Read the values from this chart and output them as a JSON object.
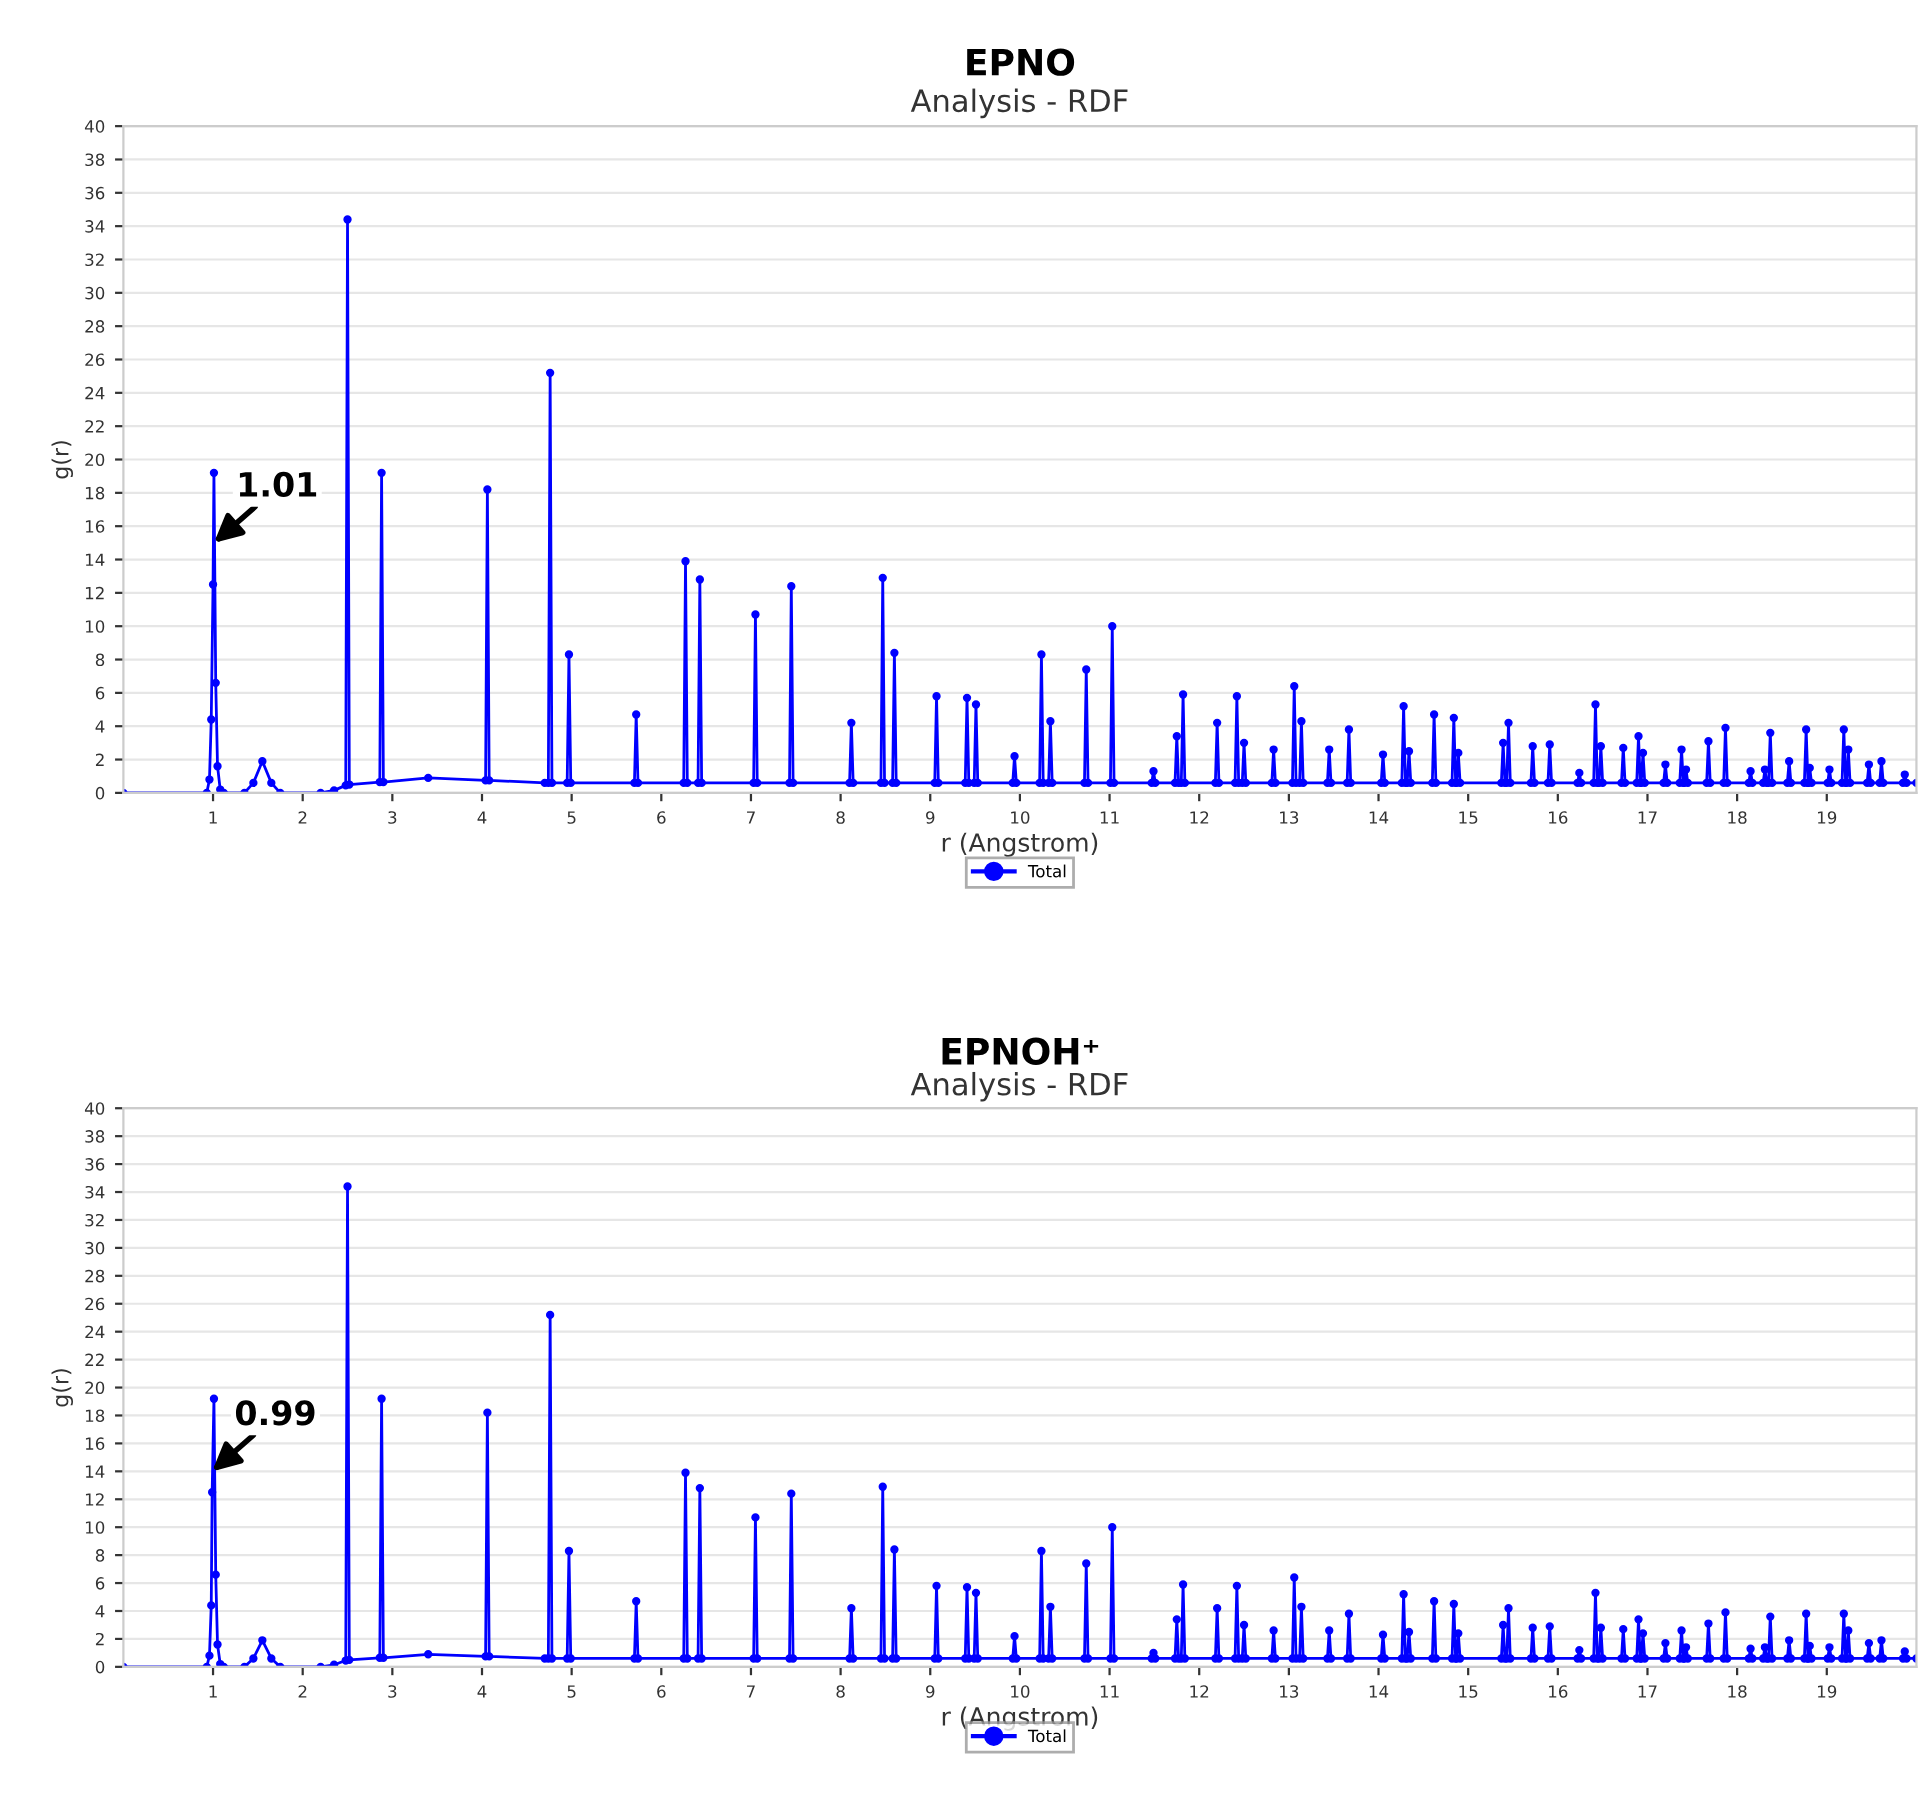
{
  "chart_data": [
    {
      "type": "line",
      "title": "EPNO",
      "subtitle": "Analysis - RDF",
      "xlabel": "r (Angstrom)",
      "ylabel": "g(r)",
      "xlim": [
        0,
        20
      ],
      "ylim": [
        0,
        40
      ],
      "xticks": [
        1,
        2,
        3,
        4,
        5,
        6,
        7,
        8,
        9,
        10,
        11,
        12,
        13,
        14,
        15,
        16,
        17,
        18,
        19
      ],
      "yticks": [
        0,
        2,
        4,
        6,
        8,
        10,
        12,
        14,
        16,
        18,
        20,
        22,
        24,
        26,
        28,
        30,
        32,
        34,
        36,
        38,
        40
      ],
      "grid": "y",
      "legend": "bottom",
      "marker": "circle",
      "line_style": "solid",
      "annotations": [
        {
          "text": "1.01",
          "x": 1.01,
          "y": 15
        }
      ],
      "series": [
        {
          "name": "Total",
          "color": "#0000ff",
          "x": [
            0,
            0.93,
            0.96,
            0.98,
            1.0,
            1.01,
            1.03,
            1.05,
            1.08,
            1.12,
            1.35,
            1.45,
            1.55,
            1.65,
            1.75,
            2.2,
            2.35,
            2.48,
            2.5,
            2.52,
            2.86,
            2.88,
            2.9,
            3.4,
            4.04,
            4.06,
            4.08,
            4.7,
            4.74,
            4.76,
            4.78,
            4.95,
            4.97,
            4.99,
            5.7,
            5.72,
            5.74,
            6.25,
            6.27,
            6.29,
            6.41,
            6.43,
            6.45,
            7.03,
            7.05,
            7.07,
            7.43,
            7.45,
            7.47,
            8.1,
            8.12,
            8.14,
            8.45,
            8.47,
            8.49,
            8.58,
            8.6,
            8.62,
            9.05,
            9.07,
            9.09,
            9.39,
            9.41,
            9.43,
            9.49,
            9.51,
            9.53,
            9.92,
            9.94,
            9.96,
            10.22,
            10.24,
            10.26,
            10.32,
            10.34,
            10.36,
            10.72,
            10.74,
            10.76,
            11.01,
            11.03,
            11.05,
            11.47,
            11.49,
            11.51,
            11.73,
            11.75,
            11.77,
            11.8,
            11.82,
            11.84,
            12.18,
            12.2,
            12.22,
            12.4,
            12.42,
            12.44,
            12.48,
            12.5,
            12.52,
            12.81,
            12.83,
            12.85,
            13.04,
            13.06,
            13.08,
            13.12,
            13.14,
            13.16,
            13.43,
            13.45,
            13.47,
            13.65,
            13.67,
            13.69,
            14.03,
            14.05,
            14.07,
            14.26,
            14.28,
            14.3,
            14.32,
            14.34,
            14.36,
            14.6,
            14.62,
            14.64,
            14.82,
            14.84,
            14.86,
            14.87,
            14.89,
            14.91,
            15.37,
            15.39,
            15.41,
            15.43,
            15.45,
            15.47,
            15.7,
            15.72,
            15.74,
            15.89,
            15.91,
            15.93,
            16.22,
            16.24,
            16.26,
            16.4,
            16.42,
            16.44,
            16.46,
            16.48,
            16.5,
            16.71,
            16.73,
            16.75,
            16.88,
            16.9,
            16.92,
            16.93,
            16.95,
            16.97,
            17.18,
            17.2,
            17.22,
            17.36,
            17.38,
            17.4,
            17.41,
            17.43,
            17.45,
            17.66,
            17.68,
            17.7,
            17.85,
            17.87,
            17.89,
            18.13,
            18.15,
            18.17,
            18.29,
            18.31,
            18.33,
            18.35,
            18.37,
            18.39,
            18.56,
            18.58,
            18.6,
            18.75,
            18.77,
            18.79,
            18.79,
            18.81,
            18.83,
            19.01,
            19.03,
            19.05,
            19.17,
            19.19,
            19.21,
            19.22,
            19.24,
            19.26,
            19.45,
            19.47,
            19.49,
            19.59,
            19.61,
            19.63,
            19.85,
            19.87,
            19.89,
            20
          ],
          "values": [
            0,
            0,
            0.8,
            4.4,
            12.5,
            19.2,
            6.6,
            1.6,
            0.2,
            0,
            0,
            0.6,
            1.9,
            0.6,
            0,
            0,
            0.15,
            0.45,
            34.4,
            0.5,
            0.65,
            19.2,
            0.65,
            0.9,
            0.75,
            18.2,
            0.75,
            0.6,
            0.6,
            25.2,
            0.6,
            0.6,
            8.3,
            0.6,
            0.6,
            4.7,
            0.6,
            0.6,
            13.9,
            0.6,
            0.6,
            12.8,
            0.6,
            0.6,
            10.7,
            0.6,
            0.6,
            12.4,
            0.6,
            0.6,
            4.2,
            0.6,
            0.6,
            12.9,
            0.6,
            0.6,
            8.4,
            0.6,
            0.6,
            5.8,
            0.6,
            0.6,
            5.7,
            0.6,
            0.6,
            5.3,
            0.6,
            0.6,
            2.2,
            0.6,
            0.6,
            8.3,
            0.6,
            0.6,
            4.3,
            0.6,
            0.6,
            7.4,
            0.6,
            0.6,
            10,
            0.6,
            0.6,
            1.3,
            0.6,
            0.6,
            3.4,
            0.6,
            0.6,
            5.9,
            0.6,
            0.6,
            4.2,
            0.6,
            0.6,
            5.8,
            0.6,
            0.6,
            3.0,
            0.6,
            0.6,
            2.6,
            0.6,
            0.6,
            6.4,
            0.6,
            0.6,
            4.3,
            0.6,
            0.6,
            2.6,
            0.6,
            0.6,
            3.8,
            0.6,
            0.6,
            2.3,
            0.6,
            0.6,
            5.2,
            0.6,
            0.6,
            2.5,
            0.6,
            0.6,
            4.7,
            0.6,
            0.6,
            4.5,
            0.6,
            0.6,
            2.4,
            0.6,
            0.6,
            3.0,
            0.6,
            0.6,
            4.2,
            0.6,
            0.6,
            2.8,
            0.6,
            0.6,
            2.9,
            0.6,
            0.6,
            1.2,
            0.6,
            0.6,
            5.3,
            0.6,
            0.6,
            2.8,
            0.6,
            0.6,
            2.7,
            0.6,
            0.6,
            3.4,
            0.6,
            0.6,
            2.4,
            0.6,
            0.6,
            1.7,
            0.6,
            0.6,
            2.6,
            0.6,
            0.6,
            1.4,
            0.6,
            0.6,
            3.1,
            0.6,
            0.6,
            3.9,
            0.6,
            0.6,
            1.3,
            0.6,
            0.6,
            1.4,
            0.6,
            0.6,
            3.6,
            0.6,
            0.6,
            1.9,
            0.6,
            0.6,
            3.8,
            0.6,
            0.6,
            1.5,
            0.6,
            0.6,
            1.4,
            0.6,
            0.6,
            3.8,
            0.6,
            0.6,
            2.6,
            0.6,
            0.6,
            1.7,
            0.6,
            0.6,
            1.9,
            0.6,
            0.6,
            1.1,
            0.6,
            0.6
          ]
        }
      ]
    },
    {
      "type": "line",
      "title": "EPNOH⁺",
      "subtitle": "Analysis - RDF",
      "xlabel": "r (Angstrom)",
      "ylabel": "g(r)",
      "xlim": [
        0,
        20
      ],
      "ylim": [
        0,
        40
      ],
      "xticks": [
        1,
        2,
        3,
        4,
        5,
        6,
        7,
        8,
        9,
        10,
        11,
        12,
        13,
        14,
        15,
        16,
        17,
        18,
        19
      ],
      "yticks": [
        0,
        2,
        4,
        6,
        8,
        10,
        12,
        14,
        16,
        18,
        20,
        22,
        24,
        26,
        28,
        30,
        32,
        34,
        36,
        38,
        40
      ],
      "grid": "y",
      "legend": "bottom",
      "marker": "circle",
      "line_style": "solid",
      "annotations": [
        {
          "text": "0.99",
          "x": 0.99,
          "y": 14
        }
      ],
      "series": [
        {
          "name": "Total",
          "color": "#0000ff",
          "x": [
            0,
            0.93,
            0.96,
            0.98,
            0.99,
            1.01,
            1.03,
            1.05,
            1.08,
            1.12,
            1.35,
            1.45,
            1.55,
            1.65,
            1.75,
            2.2,
            2.35,
            2.48,
            2.5,
            2.52,
            2.86,
            2.88,
            2.9,
            3.4,
            4.04,
            4.06,
            4.08,
            4.7,
            4.74,
            4.76,
            4.78,
            4.95,
            4.97,
            4.99,
            5.7,
            5.72,
            5.74,
            6.25,
            6.27,
            6.29,
            6.41,
            6.43,
            6.45,
            7.03,
            7.05,
            7.07,
            7.43,
            7.45,
            7.47,
            8.1,
            8.12,
            8.14,
            8.45,
            8.47,
            8.49,
            8.58,
            8.6,
            8.62,
            9.05,
            9.07,
            9.09,
            9.39,
            9.41,
            9.43,
            9.49,
            9.51,
            9.53,
            9.92,
            9.94,
            9.96,
            10.22,
            10.24,
            10.26,
            10.32,
            10.34,
            10.36,
            10.72,
            10.74,
            10.76,
            11.01,
            11.03,
            11.05,
            11.47,
            11.49,
            11.51,
            11.73,
            11.75,
            11.77,
            11.8,
            11.82,
            11.84,
            12.18,
            12.2,
            12.22,
            12.4,
            12.42,
            12.44,
            12.48,
            12.5,
            12.52,
            12.81,
            12.83,
            12.85,
            13.04,
            13.06,
            13.08,
            13.12,
            13.14,
            13.16,
            13.43,
            13.45,
            13.47,
            13.65,
            13.67,
            13.69,
            14.03,
            14.05,
            14.07,
            14.26,
            14.28,
            14.3,
            14.32,
            14.34,
            14.36,
            14.6,
            14.62,
            14.64,
            14.82,
            14.84,
            14.86,
            14.87,
            14.89,
            14.91,
            15.37,
            15.39,
            15.41,
            15.43,
            15.45,
            15.47,
            15.7,
            15.72,
            15.74,
            15.89,
            15.91,
            15.93,
            16.22,
            16.24,
            16.26,
            16.4,
            16.42,
            16.44,
            16.46,
            16.48,
            16.5,
            16.71,
            16.73,
            16.75,
            16.88,
            16.9,
            16.92,
            16.93,
            16.95,
            16.97,
            17.18,
            17.2,
            17.22,
            17.36,
            17.38,
            17.4,
            17.41,
            17.43,
            17.45,
            17.66,
            17.68,
            17.7,
            17.85,
            17.87,
            17.89,
            18.13,
            18.15,
            18.17,
            18.29,
            18.31,
            18.33,
            18.35,
            18.37,
            18.39,
            18.56,
            18.58,
            18.6,
            18.75,
            18.77,
            18.79,
            18.79,
            18.81,
            18.83,
            19.01,
            19.03,
            19.05,
            19.17,
            19.19,
            19.21,
            19.22,
            19.24,
            19.26,
            19.45,
            19.47,
            19.49,
            19.59,
            19.61,
            19.63,
            19.85,
            19.87,
            19.89,
            20
          ],
          "values": [
            0,
            0,
            0.8,
            4.4,
            12.5,
            19.2,
            6.6,
            1.6,
            0.2,
            0,
            0,
            0.6,
            1.9,
            0.6,
            0,
            0,
            0.15,
            0.45,
            34.4,
            0.5,
            0.65,
            19.2,
            0.65,
            0.9,
            0.75,
            18.2,
            0.75,
            0.6,
            0.6,
            25.2,
            0.6,
            0.6,
            8.3,
            0.6,
            0.6,
            4.7,
            0.6,
            0.6,
            13.9,
            0.6,
            0.6,
            12.8,
            0.6,
            0.6,
            10.7,
            0.6,
            0.6,
            12.4,
            0.6,
            0.6,
            4.2,
            0.6,
            0.6,
            12.9,
            0.6,
            0.6,
            8.4,
            0.6,
            0.6,
            5.8,
            0.6,
            0.6,
            5.7,
            0.6,
            0.6,
            5.3,
            0.6,
            0.6,
            2.2,
            0.6,
            0.6,
            8.3,
            0.6,
            0.6,
            4.3,
            0.6,
            0.6,
            7.4,
            0.6,
            0.6,
            10,
            0.6,
            0.6,
            1.0,
            0.6,
            0.6,
            3.4,
            0.6,
            0.6,
            5.9,
            0.6,
            0.6,
            4.2,
            0.6,
            0.6,
            5.8,
            0.6,
            0.6,
            3.0,
            0.6,
            0.6,
            2.6,
            0.6,
            0.6,
            6.4,
            0.6,
            0.6,
            4.3,
            0.6,
            0.6,
            2.6,
            0.6,
            0.6,
            3.8,
            0.6,
            0.6,
            2.3,
            0.6,
            0.6,
            5.2,
            0.6,
            0.6,
            2.5,
            0.6,
            0.6,
            4.7,
            0.6,
            0.6,
            4.5,
            0.6,
            0.6,
            2.4,
            0.6,
            0.6,
            3.0,
            0.6,
            0.6,
            4.2,
            0.6,
            0.6,
            2.8,
            0.6,
            0.6,
            2.9,
            0.6,
            0.6,
            1.2,
            0.6,
            0.6,
            5.3,
            0.6,
            0.6,
            2.8,
            0.6,
            0.6,
            2.7,
            0.6,
            0.6,
            3.4,
            0.6,
            0.6,
            2.4,
            0.6,
            0.6,
            1.7,
            0.6,
            0.6,
            2.6,
            0.6,
            0.6,
            1.4,
            0.6,
            0.6,
            3.1,
            0.6,
            0.6,
            3.9,
            0.6,
            0.6,
            1.3,
            0.6,
            0.6,
            1.4,
            0.6,
            0.6,
            3.6,
            0.6,
            0.6,
            1.9,
            0.6,
            0.6,
            3.8,
            0.6,
            0.6,
            1.5,
            0.6,
            0.6,
            1.4,
            0.6,
            0.6,
            3.8,
            0.6,
            0.6,
            2.6,
            0.6,
            0.6,
            1.7,
            0.6,
            0.6,
            1.9,
            0.6,
            0.6,
            1.1,
            0.6,
            0.6
          ]
        }
      ]
    }
  ]
}
